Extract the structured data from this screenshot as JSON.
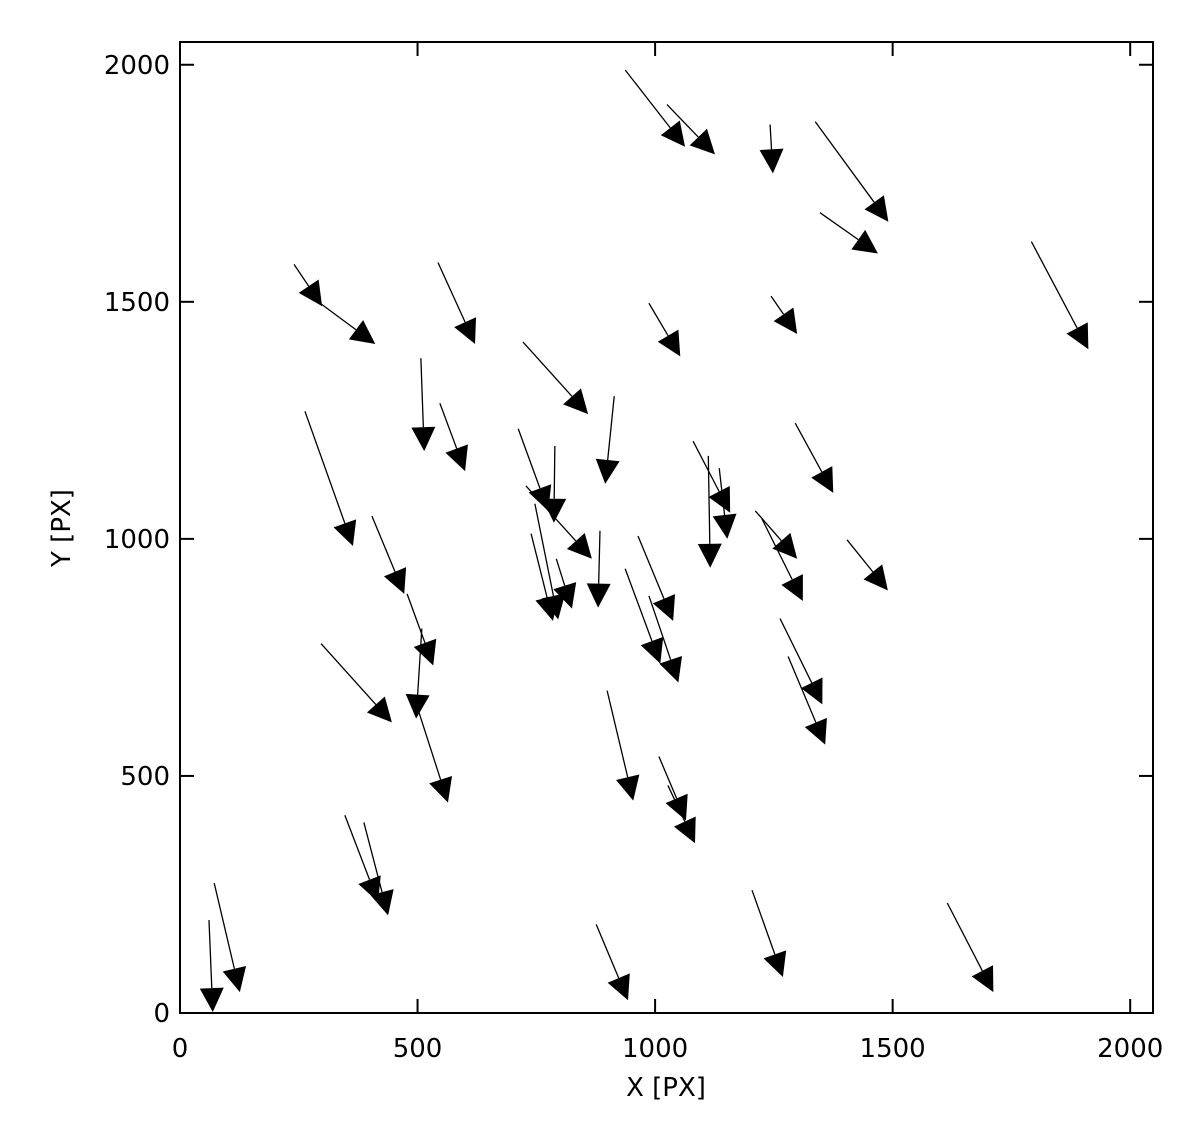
{
  "chart_data": {
    "type": "quiver",
    "xlabel": "X [PX]",
    "ylabel": "Y [PX]",
    "x": [
      937,
      1025,
      1242,
      1337,
      1347,
      1792,
      240,
      295,
      543,
      987,
      1244,
      722,
      507,
      914,
      547,
      263,
      712,
      789,
      1080,
      1135,
      1112,
      1295,
      728,
      1211,
      1225,
      1404,
      404,
      964,
      884,
      739,
      747,
      792,
      937,
      987,
      1263,
      1280,
      478,
      509,
      297,
      495,
      899,
      1008,
      1027,
      347,
      387,
      72,
      61,
      876,
      1204,
      1615
    ],
    "y": [
      1989,
      1916,
      1874,
      1880,
      1688,
      1627,
      1579,
      1497,
      1583,
      1497,
      1512,
      1415,
      1381,
      1301,
      1286,
      1269,
      1232,
      1196,
      1206,
      1149,
      1175,
      1244,
      1112,
      1059,
      1042,
      998,
      1048,
      1006,
      1017,
      1011,
      1074,
      958,
      937,
      880,
      832,
      752,
      884,
      811,
      779,
      659,
      680,
      541,
      480,
      417,
      402,
      274,
      196,
      187,
      259,
      232
    ],
    "x_end": [
      1063,
      1126,
      1248,
      1491,
      1469,
      1912,
      299,
      411,
      621,
      1053,
      1299,
      859,
      514,
      895,
      600,
      364,
      775,
      787,
      1158,
      1152,
      1116,
      1375,
      867,
      1299,
      1311,
      1490,
      472,
      1038,
      880,
      785,
      796,
      825,
      1011,
      1049,
      1352,
      1358,
      533,
      497,
      446,
      564,
      954,
      1065,
      1084,
      417,
      438,
      126,
      69,
      943,
      1269,
      1712
    ],
    "y_end": [
      1827,
      1811,
      1771,
      1669,
      1602,
      1400,
      1491,
      1411,
      1411,
      1385,
      1432,
      1263,
      1185,
      1116,
      1143,
      985,
      1059,
      1034,
      1055,
      1000,
      939,
      1097,
      958,
      958,
      869,
      891,
      884,
      827,
      855,
      827,
      830,
      853,
      737,
      697,
      651,
      566,
      733,
      621,
      613,
      444,
      448,
      406,
      358,
      234,
      206,
      44,
      2,
      27,
      76,
      44
    ],
    "color": "#000000",
    "xlim": [
      0,
      2048
    ],
    "ylim": [
      0,
      2048
    ],
    "xticks": [
      0,
      500,
      1000,
      1500,
      2000
    ],
    "yticks": [
      0,
      500,
      1000,
      1500,
      2000
    ]
  }
}
